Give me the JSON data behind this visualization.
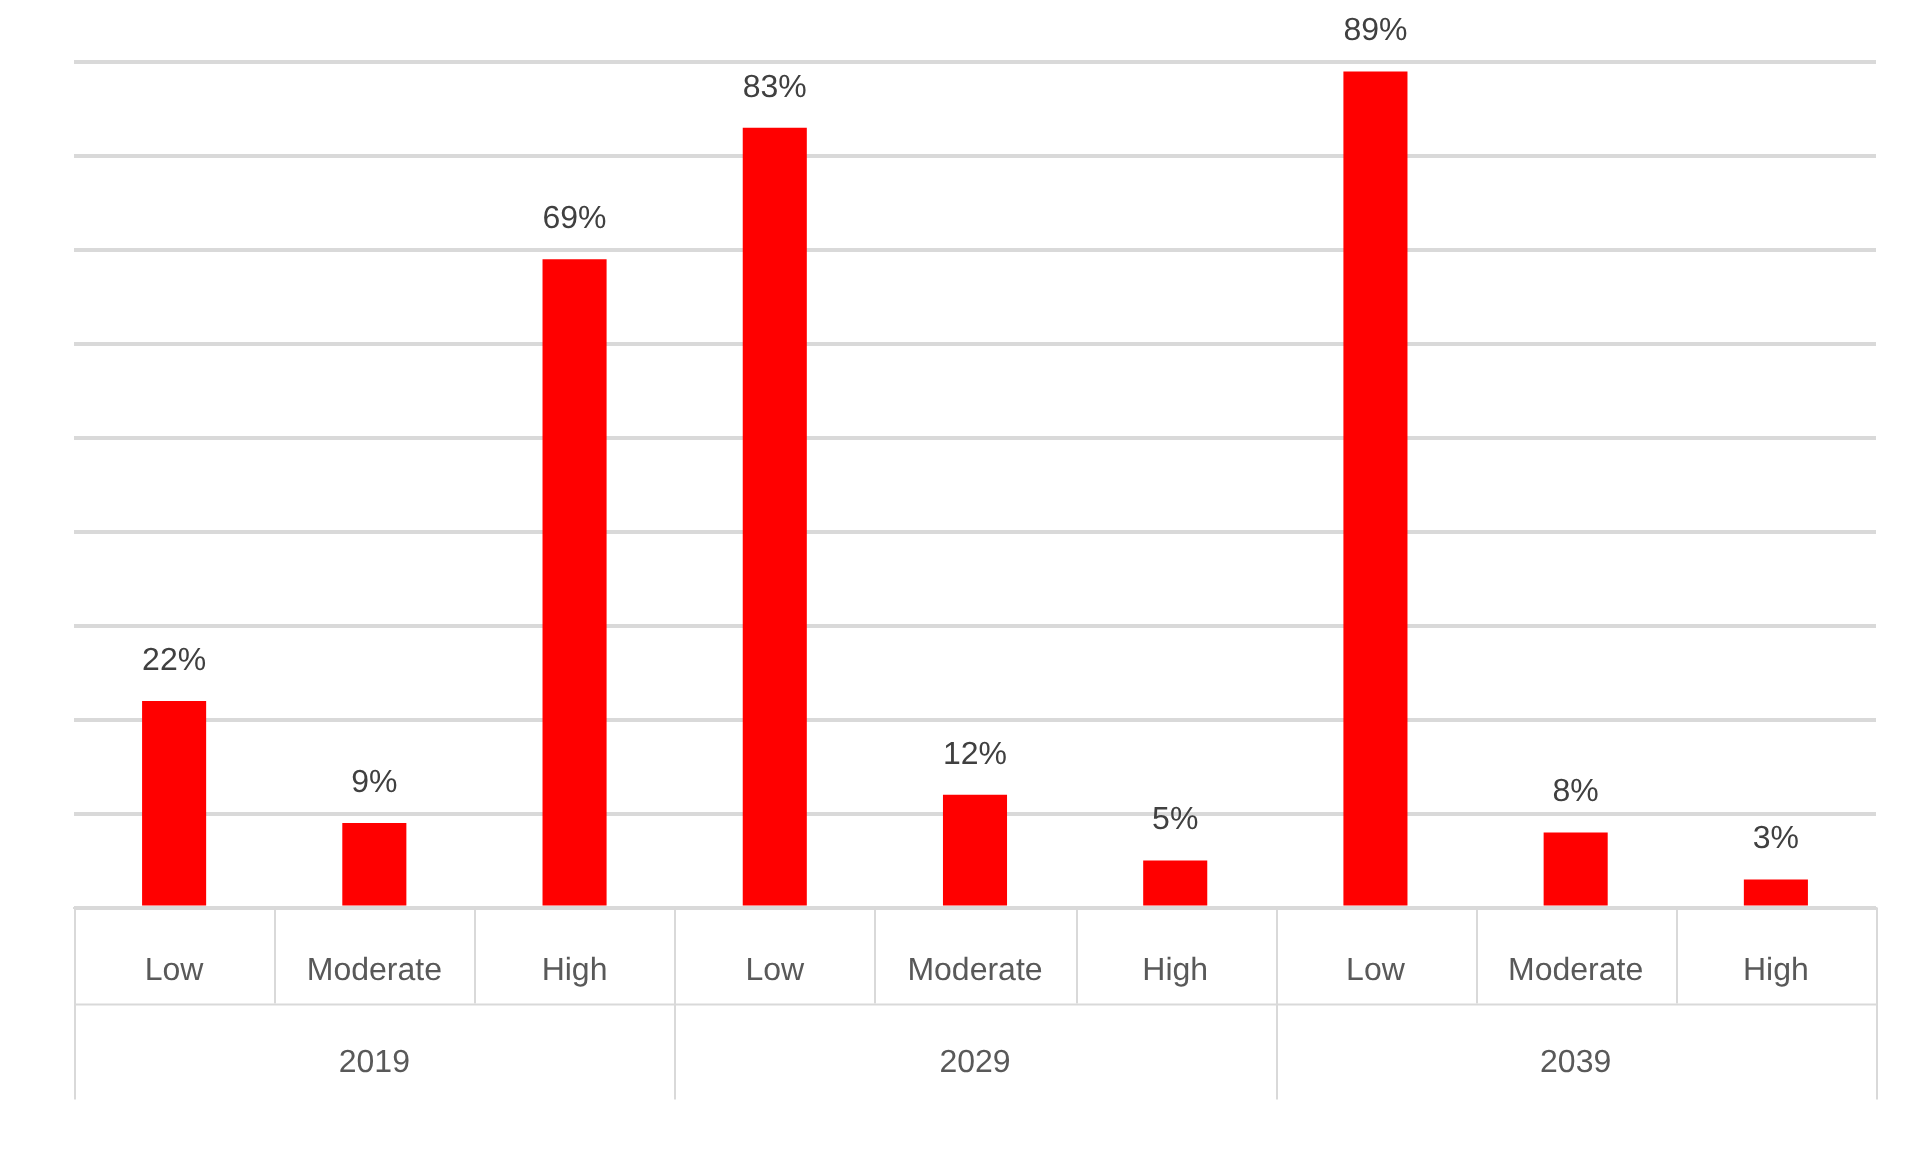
{
  "chart_data": {
    "type": "bar",
    "categories": [
      "Low",
      "Moderate",
      "High",
      "Low",
      "Moderate",
      "High",
      "Low",
      "Moderate",
      "High"
    ],
    "values": [
      22,
      9,
      69,
      83,
      12,
      5,
      89,
      8,
      3
    ],
    "value_labels": [
      "22%",
      "9%",
      "69%",
      "83%",
      "12%",
      "5%",
      "89%",
      "8%",
      "3%"
    ],
    "color": "#ff0000",
    "grid": "y",
    "tick_labels": "x",
    "annotations": [
      "2019",
      "2029",
      "2039"
    ]
  }
}
